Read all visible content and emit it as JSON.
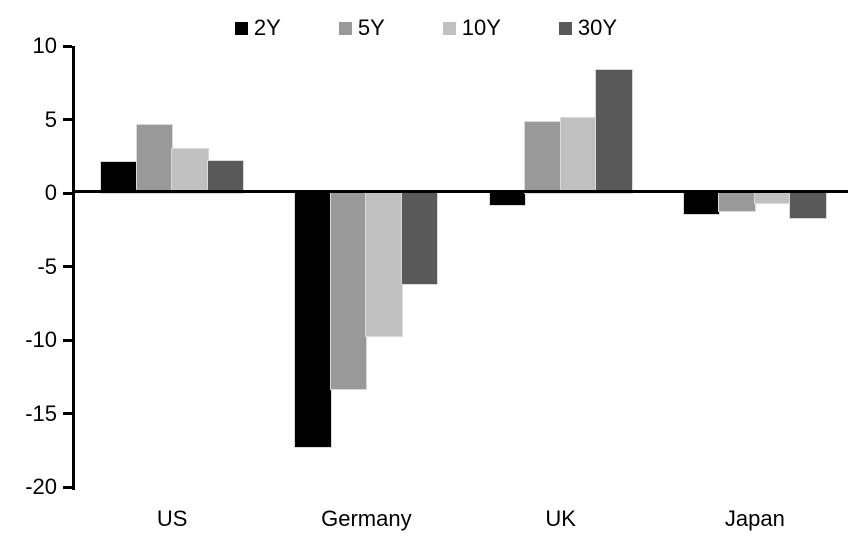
{
  "chart_data": {
    "type": "bar",
    "title": "",
    "xlabel": "",
    "ylabel": "",
    "categories": [
      "US",
      "Germany",
      "UK",
      "Japan"
    ],
    "series": [
      {
        "name": "2Y",
        "color": "#000000",
        "values": [
          2.1,
          -17.3,
          -0.8,
          -1.4
        ]
      },
      {
        "name": "5Y",
        "color": "#999999",
        "values": [
          4.6,
          -13.3,
          4.8,
          -1.2
        ]
      },
      {
        "name": "10Y",
        "color": "#c0c0c0",
        "values": [
          3.0,
          -9.7,
          5.1,
          -0.7
        ]
      },
      {
        "name": "30Y",
        "color": "#595959",
        "values": [
          2.2,
          -6.2,
          8.4,
          -1.7
        ]
      }
    ],
    "ylim": [
      -20,
      10
    ],
    "yticks": [
      10,
      5,
      0,
      -5,
      -10,
      -15,
      -20
    ],
    "ytick_step": 5,
    "grid": false,
    "legend_position": "top",
    "axis_color": "#000000",
    "bar_border_color": "#d9d9d9",
    "background_color": "#ffffff"
  }
}
